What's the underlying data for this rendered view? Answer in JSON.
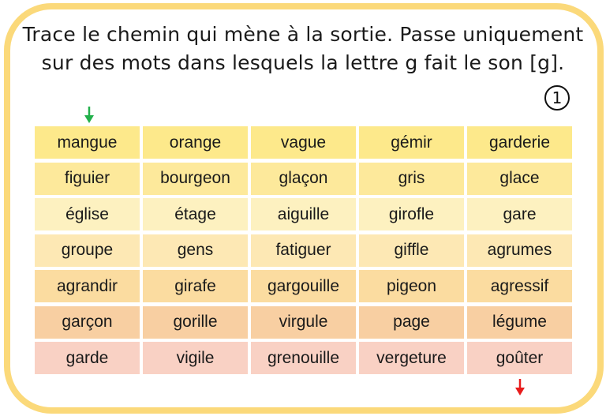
{
  "instruction": {
    "line1": "Trace le chemin qui mène à la sortie. Passe uniquement",
    "line2": "sur des mots dans lesquels la lettre g fait le son [g]."
  },
  "exercise_number": "1",
  "colors": {
    "frame": "#fbd97a",
    "start_arrow": "#22b04b",
    "end_arrow": "#e81c1c",
    "rows": [
      "#fde98b",
      "#fde99b",
      "#fdf1c0",
      "#fde8b4",
      "#fbdca0",
      "#f8cfa2",
      "#f9d1c4"
    ]
  },
  "icons": {
    "start": "arrow-down-green",
    "end": "arrow-down-red",
    "badge": "circled-number"
  },
  "grid": [
    [
      "mangue",
      "orange",
      "vague",
      "gémir",
      "garderie"
    ],
    [
      "figuier",
      "bourgeon",
      "glaçon",
      "gris",
      "glace"
    ],
    [
      "église",
      "étage",
      "aiguille",
      "girofle",
      "gare"
    ],
    [
      "groupe",
      "gens",
      "fatiguer",
      "giffle",
      "agrumes"
    ],
    [
      "agrandir",
      "girafe",
      "gargouille",
      "pigeon",
      "agressif"
    ],
    [
      "garçon",
      "gorille",
      "virgule",
      "page",
      "légume"
    ],
    [
      "garde",
      "vigile",
      "grenouille",
      "vergeture",
      "goûter"
    ]
  ]
}
